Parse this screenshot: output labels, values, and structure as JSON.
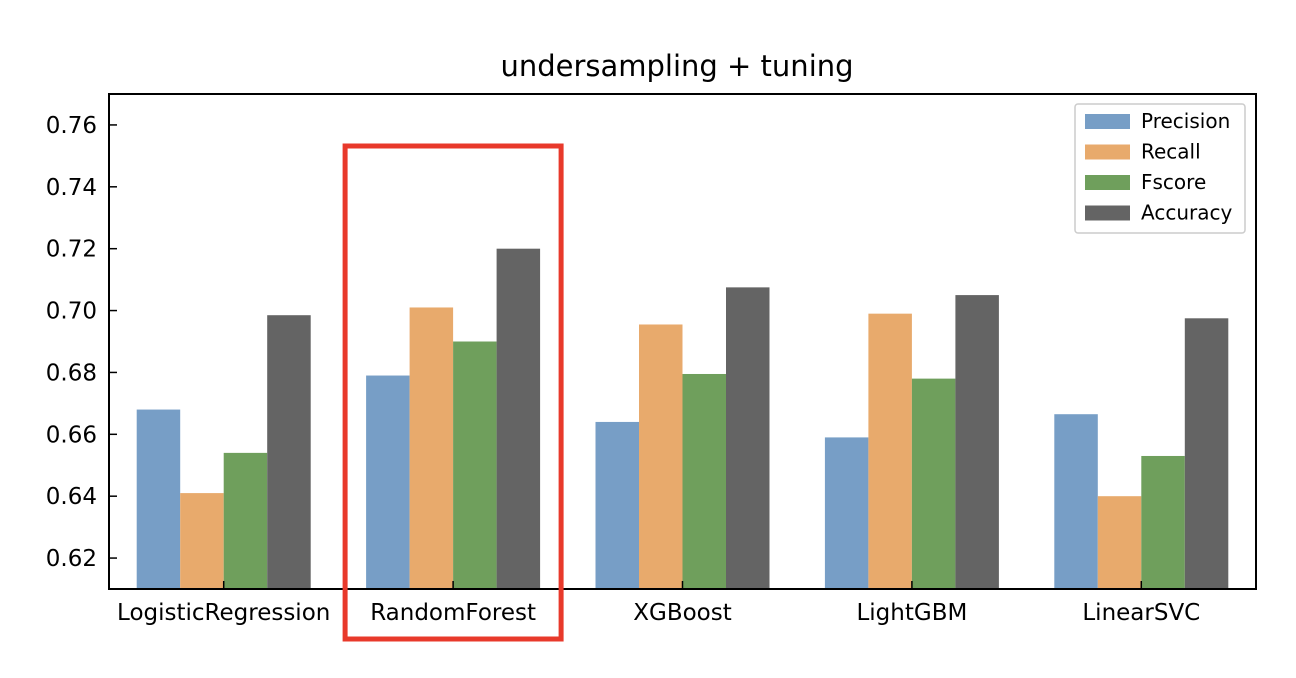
{
  "chart_data": {
    "type": "bar",
    "title": "undersampling + tuning",
    "xlabel": "",
    "ylabel": "",
    "categories": [
      "LogisticRegression",
      "RandomForest",
      "XGBoost",
      "LightGBM",
      "LinearSVC"
    ],
    "series": [
      {
        "name": "Precision",
        "color": "#779ec6",
        "values": [
          0.668,
          0.679,
          0.664,
          0.659,
          0.6665
        ]
      },
      {
        "name": "Recall",
        "color": "#e8aa6c",
        "values": [
          0.641,
          0.701,
          0.6955,
          0.699,
          0.64
        ]
      },
      {
        "name": "Fscore",
        "color": "#6f9f5c",
        "values": [
          0.654,
          0.69,
          0.6795,
          0.678,
          0.653
        ]
      },
      {
        "name": "Accuracy",
        "color": "#646464",
        "values": [
          0.6985,
          0.72,
          0.7075,
          0.705,
          0.6975
        ]
      }
    ],
    "ylim": [
      0.61,
      0.77
    ],
    "yticks": [
      "0.62",
      "0.64",
      "0.66",
      "0.68",
      "0.70",
      "0.72",
      "0.74",
      "0.76"
    ],
    "legend_position": "top-right",
    "grid": false,
    "highlight": {
      "category": "RandomForest",
      "color": "#e8392b"
    }
  }
}
